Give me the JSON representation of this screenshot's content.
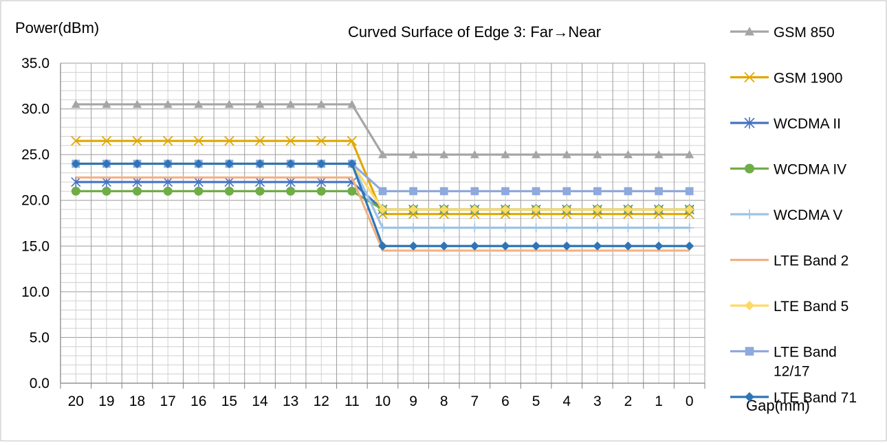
{
  "chart_data": {
    "type": "line",
    "title": "Curved Surface of Edge 3: Far→Near",
    "ylabel": "Power(dBm)",
    "xlabel": "Gap(mm)",
    "categories": [
      "20",
      "19",
      "18",
      "17",
      "16",
      "15",
      "14",
      "13",
      "12",
      "11",
      "10",
      "9",
      "8",
      "7",
      "6",
      "5",
      "4",
      "3",
      "2",
      "1",
      "0"
    ],
    "ylim": [
      0,
      35
    ],
    "yticks": [
      "0.0",
      "5.0",
      "10.0",
      "15.0",
      "20.0",
      "25.0",
      "30.0",
      "35.0"
    ],
    "grid": true,
    "legend_position": "right",
    "series": [
      {
        "name": "GSM 850",
        "color": "#a5a5a5",
        "marker": "triangle",
        "values": [
          30.5,
          30.5,
          30.5,
          30.5,
          30.5,
          30.5,
          30.5,
          30.5,
          30.5,
          30.5,
          25,
          25,
          25,
          25,
          25,
          25,
          25,
          25,
          25,
          25,
          25
        ]
      },
      {
        "name": "GSM 1900",
        "color": "#e0a800",
        "marker": "x",
        "values": [
          26.5,
          26.5,
          26.5,
          26.5,
          26.5,
          26.5,
          26.5,
          26.5,
          26.5,
          26.5,
          18.5,
          18.5,
          18.5,
          18.5,
          18.5,
          18.5,
          18.5,
          18.5,
          18.5,
          18.5,
          18.5
        ]
      },
      {
        "name": "WCDMA II",
        "color": "#4472c4",
        "marker": "star",
        "values": [
          22,
          22,
          22,
          22,
          22,
          22,
          22,
          22,
          22,
          22,
          19,
          19,
          19,
          19,
          19,
          19,
          19,
          19,
          19,
          19,
          19
        ]
      },
      {
        "name": "WCDMA IV",
        "color": "#70ad47",
        "marker": "circle",
        "values": [
          21,
          21,
          21,
          21,
          21,
          21,
          21,
          21,
          21,
          21,
          19,
          19,
          19,
          19,
          19,
          19,
          19,
          19,
          19,
          19,
          19
        ]
      },
      {
        "name": "WCDMA V",
        "color": "#9dc3e6",
        "marker": "plus",
        "values": [
          24,
          24,
          24,
          24,
          24,
          24,
          24,
          24,
          24,
          24,
          17,
          17,
          17,
          17,
          17,
          17,
          17,
          17,
          17,
          17,
          17
        ]
      },
      {
        "name": "LTE Band 2",
        "color": "#f4b183",
        "marker": "none",
        "values": [
          22.5,
          22.5,
          22.5,
          22.5,
          22.5,
          22.5,
          22.5,
          22.5,
          22.5,
          22.5,
          14.5,
          14.5,
          14.5,
          14.5,
          14.5,
          14.5,
          14.5,
          14.5,
          14.5,
          14.5,
          14.5
        ]
      },
      {
        "name": "LTE Band 5",
        "color": "#ffd966",
        "marker": "diamond",
        "values": [
          24,
          24,
          24,
          24,
          24,
          24,
          24,
          24,
          24,
          24,
          19,
          19,
          19,
          19,
          19,
          19,
          19,
          19,
          19,
          19,
          19
        ]
      },
      {
        "name": "LTE Band 12/17",
        "legend_lines": [
          "LTE Band",
          "12/17"
        ],
        "color": "#8fa9dc",
        "marker": "square",
        "values": [
          24,
          24,
          24,
          24,
          24,
          24,
          24,
          24,
          24,
          24,
          21,
          21,
          21,
          21,
          21,
          21,
          21,
          21,
          21,
          21,
          21
        ]
      },
      {
        "name": "LTE Band 71",
        "color": "#2e75b6",
        "marker": "diamond",
        "values": [
          24,
          24,
          24,
          24,
          24,
          24,
          24,
          24,
          24,
          24,
          15,
          15,
          15,
          15,
          15,
          15,
          15,
          15,
          15,
          15,
          15
        ]
      }
    ]
  }
}
